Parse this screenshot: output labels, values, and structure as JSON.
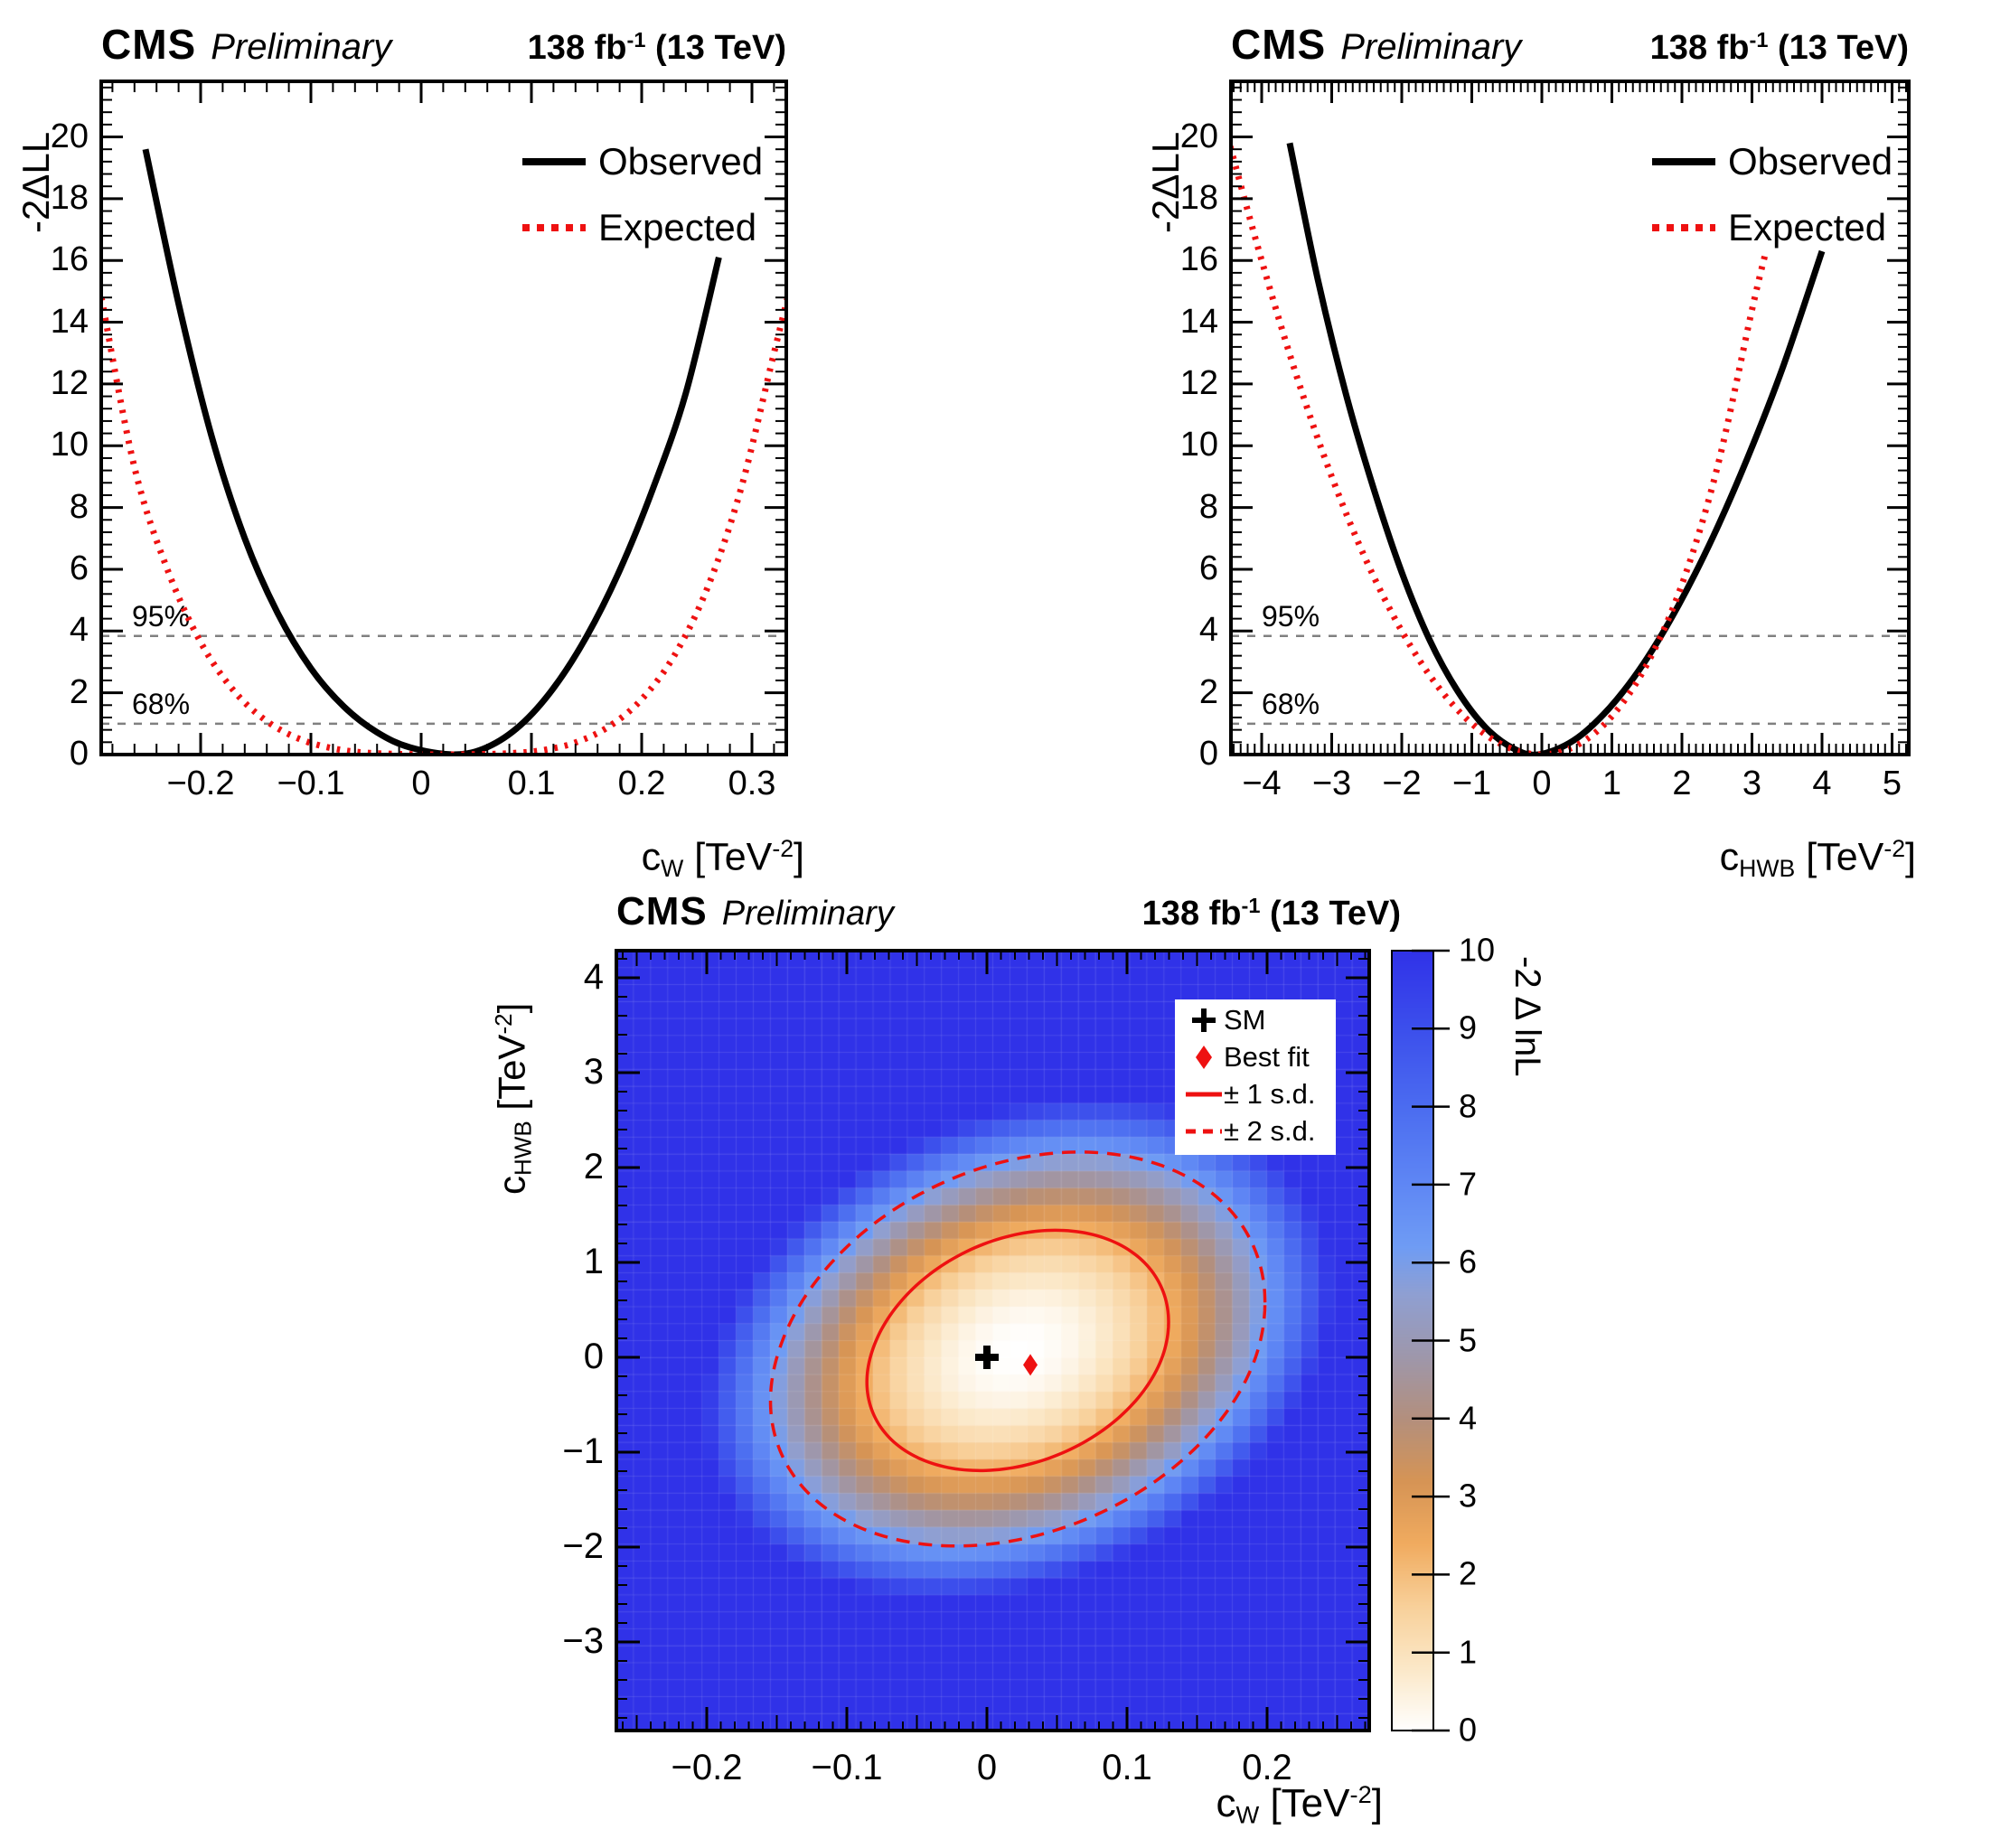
{
  "ui": {
    "header": {
      "cms": "CMS",
      "preliminary": "Preliminary",
      "lumi_main": "138 fb",
      "lumi_sup": "-1",
      "lumi_tail": " (13 TeV)"
    },
    "legend1d": {
      "observed": "Observed",
      "expected": "Expected"
    },
    "thresholds": {
      "p95": "95%",
      "p68": "68%"
    },
    "legend2d": {
      "sm": "SM",
      "best": "Best fit",
      "sd1": "± 1 s.d.",
      "sd2": "± 2 s.d."
    },
    "axis_titles": {
      "y1d": "-2ΔLL",
      "cw_sym": "c",
      "cw_sub": "W",
      "chwb_sym": "c",
      "chwb_sub": "HWB",
      "unit_pre": " [TeV",
      "unit_sup": "-2",
      "unit_post": "]",
      "z2d": "-2 Δ lnL"
    },
    "colors": {
      "observed": "#000000",
      "expected": "#ee1111",
      "threshold": "#808080",
      "contour": "#ee1111"
    }
  },
  "chart_data": [
    {
      "id": "cw",
      "type": "line",
      "title": "CMS Preliminary",
      "lumi": "138 fb⁻¹ (13 TeV)",
      "xlabel": "c_W [TeV^-2]",
      "ylabel": "-2ΔLL",
      "xlim": [
        -0.29,
        0.331
      ],
      "ylim": [
        0,
        21.8
      ],
      "x_ticks": {
        "values": [
          -0.2,
          -0.1,
          0,
          0.1,
          0.2,
          0.3
        ],
        "labels": [
          "−0.2",
          "−0.1",
          "0",
          "0.1",
          "0.2",
          "0.3"
        ],
        "minor_step": 0.02
      },
      "y_ticks": {
        "values": [
          0,
          2,
          4,
          6,
          8,
          10,
          12,
          14,
          16,
          18,
          20
        ],
        "labels": [
          "0",
          "2",
          "4",
          "6",
          "8",
          "10",
          "12",
          "14",
          "16",
          "18",
          "20"
        ],
        "minor_step": 0.4
      },
      "thresholds": [
        {
          "label": "95%",
          "value": 3.84
        },
        {
          "label": "68%",
          "value": 1.0
        }
      ],
      "series": [
        {
          "name": "Observed",
          "color": "#000000",
          "style": "solid",
          "points": [
            [
              -0.25,
              19.6
            ],
            [
              -0.22,
              14.6
            ],
            [
              -0.19,
              10.3
            ],
            [
              -0.16,
              7.0
            ],
            [
              -0.13,
              4.57
            ],
            [
              -0.1,
              2.79
            ],
            [
              -0.07,
              1.55
            ],
            [
              -0.04,
              0.72
            ],
            [
              -0.01,
              0.23
            ],
            [
              0.03,
              0.0
            ],
            [
              0.06,
              0.24
            ],
            [
              0.09,
              0.95
            ],
            [
              0.12,
              2.15
            ],
            [
              0.15,
              3.82
            ],
            [
              0.18,
              5.96
            ],
            [
              0.21,
              8.59
            ],
            [
              0.24,
              11.7
            ],
            [
              0.27,
              16.1
            ]
          ]
        },
        {
          "name": "Expected",
          "color": "#ee1111",
          "style": "dotted",
          "points": [
            [
              -0.29,
              14.8
            ],
            [
              -0.26,
              9.3
            ],
            [
              -0.23,
              5.98
            ],
            [
              -0.2,
              3.64
            ],
            [
              -0.17,
              2.07
            ],
            [
              -0.14,
              1.08
            ],
            [
              -0.11,
              0.5
            ],
            [
              -0.08,
              0.2
            ],
            [
              -0.05,
              0.06
            ],
            [
              -0.01,
              0.01
            ],
            [
              0.02,
              0.0
            ],
            [
              0.05,
              0.01
            ],
            [
              0.08,
              0.04
            ],
            [
              0.11,
              0.14
            ],
            [
              0.14,
              0.39
            ],
            [
              0.17,
              0.9
            ],
            [
              0.2,
              1.79
            ],
            [
              0.23,
              3.23
            ],
            [
              0.26,
              5.43
            ],
            [
              0.29,
              8.6
            ],
            [
              0.32,
              13.0
            ],
            [
              0.34,
              15.9
            ]
          ]
        }
      ]
    },
    {
      "id": "chwb",
      "type": "line",
      "title": "CMS Preliminary",
      "lumi": "138 fb⁻¹ (13 TeV)",
      "xlabel": "c_HWB [TeV^-2]",
      "ylabel": "-2ΔLL",
      "xlim": [
        -4.45,
        5.24
      ],
      "ylim": [
        0,
        21.8
      ],
      "x_ticks": {
        "values": [
          -4,
          -3,
          -2,
          -1,
          0,
          1,
          2,
          3,
          4,
          5
        ],
        "labels": [
          "−4",
          "−3",
          "−2",
          "−1",
          "0",
          "1",
          "2",
          "3",
          "4",
          "5"
        ],
        "minor_step": 0.1
      },
      "y_ticks": {
        "values": [
          0,
          2,
          4,
          6,
          8,
          10,
          12,
          14,
          16,
          18,
          20
        ],
        "labels": [
          "0",
          "2",
          "4",
          "6",
          "8",
          "10",
          "12",
          "14",
          "16",
          "18",
          "20"
        ],
        "minor_step": 0.4
      },
      "thresholds": [
        {
          "label": "95%",
          "value": 3.84
        },
        {
          "label": "68%",
          "value": 1.0
        }
      ],
      "series": [
        {
          "name": "Observed",
          "color": "#000000",
          "style": "solid",
          "points": [
            [
              -3.6,
              19.8
            ],
            [
              -3.2,
              15.4
            ],
            [
              -2.8,
              11.7
            ],
            [
              -2.4,
              8.6
            ],
            [
              -2.0,
              5.9
            ],
            [
              -1.6,
              3.7
            ],
            [
              -1.2,
              2.05
            ],
            [
              -0.8,
              0.87
            ],
            [
              -0.4,
              0.19
            ],
            [
              -0.05,
              0.0
            ],
            [
              0.45,
              0.45
            ],
            [
              0.95,
              1.47
            ],
            [
              1.45,
              2.94
            ],
            [
              1.95,
              4.83
            ],
            [
              2.45,
              7.08
            ],
            [
              2.95,
              9.68
            ],
            [
              3.45,
              12.6
            ],
            [
              4.0,
              16.3
            ]
          ]
        },
        {
          "name": "Expected",
          "color": "#ee1111",
          "style": "dotted",
          "points": [
            [
              -4.45,
              19.7
            ],
            [
              -4.0,
              16.0
            ],
            [
              -3.5,
              12.25
            ],
            [
              -3.0,
              9.0
            ],
            [
              -2.5,
              6.25
            ],
            [
              -2.0,
              4.0
            ],
            [
              -1.5,
              2.25
            ],
            [
              -1.0,
              1.0
            ],
            [
              -0.5,
              0.25
            ],
            [
              0.0,
              0.0
            ],
            [
              0.5,
              0.3
            ],
            [
              1.0,
              1.24
            ],
            [
              1.5,
              2.92
            ],
            [
              2.0,
              5.51
            ],
            [
              2.5,
              9.25
            ],
            [
              3.0,
              14.4
            ],
            [
              3.2,
              16.3
            ]
          ]
        }
      ]
    },
    {
      "id": "map",
      "type": "heatmap",
      "title": "CMS Preliminary",
      "lumi": "138 fb⁻¹ (13 TeV)",
      "xlabel": "c_W [TeV^-2]",
      "ylabel": "c_HWB [TeV^-2]",
      "zlabel": "-2 Δ lnL",
      "xlim": [
        -0.2645,
        0.273
      ],
      "ylim": [
        -3.93,
        4.286
      ],
      "zlim": [
        0,
        10
      ],
      "bins": [
        44,
        46
      ],
      "x_ticks": {
        "values": [
          -0.2,
          -0.1,
          0,
          0.1,
          0.2
        ],
        "labels": [
          "−0.2",
          "−0.1",
          "0",
          "0.1",
          "0.2"
        ],
        "minor_step": 0.01,
        "mid_step": 0.05
      },
      "y_ticks": {
        "values": [
          4,
          3,
          2,
          1,
          0,
          -1,
          -2,
          -3
        ],
        "labels": [
          "4",
          "3",
          "2",
          "1",
          "0",
          "−1",
          "−2",
          "−3"
        ],
        "minor_step": 0.2
      },
      "colorbar_ticks": {
        "values": [
          0,
          1,
          2,
          3,
          4,
          5,
          6,
          7,
          8,
          9,
          10
        ],
        "labels": [
          "0",
          "1",
          "2",
          "3",
          "4",
          "5",
          "6",
          "7",
          "8",
          "9",
          "10"
        ]
      },
      "model": {
        "center": [
          0.022,
          0.05
        ],
        "sigma_x": 0.071,
        "sigma_y_up": 0.85,
        "sigma_y_dn": 0.82,
        "rho": 0.25
      },
      "contours": [
        {
          "name": "± 1 s.d.",
          "level": 2.3,
          "style": "solid"
        },
        {
          "name": "± 2 s.d.",
          "level": 6.18,
          "style": "dashed"
        }
      ],
      "markers": {
        "sm": [
          0,
          0
        ],
        "best_fit": [
          0.031,
          -0.08
        ]
      },
      "palette": [
        [
          0.0,
          "#ffffff"
        ],
        [
          0.8,
          "#fbe8c8"
        ],
        [
          1.6,
          "#f8d09a"
        ],
        [
          2.4,
          "#f0ab5f"
        ],
        [
          3.2,
          "#d69455"
        ],
        [
          4.0,
          "#b38f7d"
        ],
        [
          4.8,
          "#9e97ab"
        ],
        [
          5.6,
          "#8f9fd2"
        ],
        [
          6.2,
          "#6f9cf4"
        ],
        [
          7.0,
          "#5f87f4"
        ],
        [
          8.0,
          "#4b6cf0"
        ],
        [
          9.0,
          "#3c4fec"
        ],
        [
          10.0,
          "#3032e8"
        ]
      ]
    }
  ]
}
